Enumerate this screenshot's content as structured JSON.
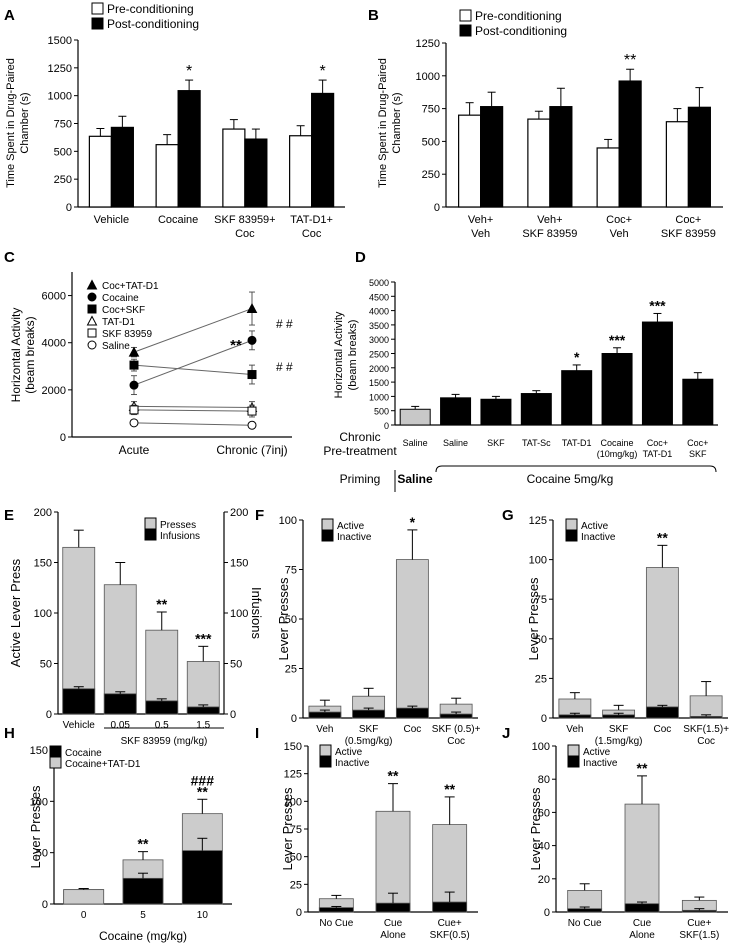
{
  "chart_data": [
    {
      "panel": "A",
      "type": "bar",
      "ylabel": "Time Spent in Drug-Paired Chamber (s)",
      "ylim": [
        0,
        1500
      ],
      "yticks": [
        0,
        250,
        500,
        750,
        1000,
        1250,
        1500
      ],
      "ytick_labels": [
        "0",
        "250",
        "500",
        "750",
        "1000",
        "1250",
        "1500"
      ],
      "categories": [
        [
          "Vehicle"
        ],
        [
          "Cocaine"
        ],
        [
          "SKF 83959+",
          "Coc"
        ],
        [
          "TAT-D1+",
          "Coc"
        ]
      ],
      "series": [
        {
          "name": "Pre-conditioning",
          "color": "#ffffff",
          "values": [
            635,
            560,
            700,
            640
          ],
          "errors": [
            70,
            90,
            85,
            90
          ]
        },
        {
          "name": "Post-conditioning",
          "color": "#000000",
          "values": [
            715,
            1045,
            610,
            1020
          ],
          "errors": [
            100,
            95,
            90,
            120
          ]
        }
      ],
      "annotations": [
        {
          "category": 1,
          "series": 1,
          "text": "*"
        },
        {
          "category": 3,
          "series": 1,
          "text": "*"
        }
      ]
    },
    {
      "panel": "B",
      "type": "bar",
      "ylabel": "Time Spent in Drug-Paired Chamber (s)",
      "ylim": [
        0,
        1250
      ],
      "yticks": [
        0,
        250,
        500,
        750,
        1000,
        1250
      ],
      "ytick_labels": [
        "0",
        "250",
        "500",
        "750",
        "1000",
        "1250"
      ],
      "categories": [
        [
          "Veh+",
          "Veh"
        ],
        [
          "Veh+",
          "SKF 83959"
        ],
        [
          "Coc+",
          "Veh"
        ],
        [
          "Coc+",
          "SKF 83959"
        ]
      ],
      "series": [
        {
          "name": "Pre-conditioning",
          "color": "#ffffff",
          "values": [
            700,
            670,
            450,
            650
          ],
          "errors": [
            95,
            60,
            65,
            100
          ]
        },
        {
          "name": "Post-conditioning",
          "color": "#000000",
          "values": [
            765,
            765,
            960,
            760
          ],
          "errors": [
            110,
            140,
            90,
            150
          ]
        }
      ],
      "annotations": [
        {
          "category": 2,
          "series": 1,
          "text": "**"
        }
      ]
    },
    {
      "panel": "C",
      "type": "line",
      "ylabel": "Horizontal Activity (beam breaks)",
      "ylim": [
        0,
        7000
      ],
      "yticks": [
        0,
        2000,
        4000,
        6000
      ],
      "ytick_labels": [
        "0",
        "2000",
        "4000",
        "6000"
      ],
      "x": [
        "Acute",
        "Chronic (7inj)"
      ],
      "series": [
        {
          "name": "Coc+TAT-D1",
          "marker": "tri-fill",
          "values": [
            3600,
            5450
          ],
          "errors": [
            200,
            700
          ]
        },
        {
          "name": "Cocaine",
          "marker": "circle-fill",
          "values": [
            2200,
            4100
          ],
          "errors": [
            400,
            400
          ]
        },
        {
          "name": "Coc+SKF",
          "marker": "square-fill",
          "values": [
            3050,
            2650
          ],
          "errors": [
            250,
            400
          ]
        },
        {
          "name": "TAT-D1",
          "marker": "tri-open",
          "values": [
            1300,
            1250
          ],
          "errors": [
            200,
            250
          ]
        },
        {
          "name": "SKF 83959",
          "marker": "square-open",
          "values": [
            1150,
            1100
          ],
          "errors": [
            200,
            250
          ]
        },
        {
          "name": "Saline",
          "marker": "circle-open",
          "values": [
            600,
            500
          ],
          "errors": [
            80,
            80
          ]
        }
      ],
      "annotations": [
        {
          "text": "**"
        },
        {
          "text": "# #"
        },
        {
          "text": "# #"
        }
      ]
    },
    {
      "panel": "D",
      "type": "bar",
      "ylabel": "Horizontal Activity (beam breaks)",
      "ylim": [
        0,
        5000
      ],
      "yticks": [
        0,
        500,
        1000,
        1500,
        2000,
        2500,
        3000,
        3500,
        4000,
        4500,
        5000
      ],
      "ytick_labels": [
        "0",
        "500",
        "1000",
        "1500",
        "2000",
        "2500",
        "3000",
        "3500",
        "4000",
        "4500",
        "5000"
      ],
      "categories": [
        [
          "Saline"
        ],
        [
          "Saline"
        ],
        [
          "SKF"
        ],
        [
          "TAT-Sc"
        ],
        [
          "TAT-D1"
        ],
        [
          "Cocaine",
          "(10mg/kg)"
        ],
        [
          "Coc+",
          "TAT-D1"
        ],
        [
          "Coc+",
          "SKF"
        ]
      ],
      "values": [
        550,
        950,
        900,
        1100,
        1900,
        2500,
        3600,
        1600
      ],
      "errors": [
        100,
        120,
        100,
        100,
        200,
        200,
        300,
        230
      ],
      "colors": [
        "#c8c8c8",
        "#000000",
        "#000000",
        "#000000",
        "#000000",
        "#000000",
        "#000000",
        "#000000"
      ],
      "annotations": [
        {
          "category": 4,
          "text": "*"
        },
        {
          "category": 5,
          "text": "***"
        },
        {
          "category": 6,
          "text": "***"
        }
      ],
      "row_labels": [
        "Chronic",
        "Pre-treatment",
        "Priming"
      ],
      "priming": [
        "Saline",
        "Cocaine 5mg/kg"
      ]
    },
    {
      "panel": "E",
      "type": "bar",
      "ylabel": "Active Lever Press",
      "y2label": "Infusions",
      "ylim": [
        0,
        200
      ],
      "yticks": [
        0,
        50,
        100,
        150,
        200
      ],
      "ytick_labels": [
        "0",
        "50",
        "100",
        "150",
        "200"
      ],
      "y2ticks": [
        "0",
        "50",
        "100",
        "150",
        "200"
      ],
      "categories": [
        [
          "Vehicle"
        ],
        [
          "0.05"
        ],
        [
          "0.5"
        ],
        [
          "1.5"
        ]
      ],
      "xlabel": "SKF 83959 (mg/kg)",
      "series": [
        {
          "name": "Presses",
          "color": "#cccccc",
          "values": [
            165,
            128,
            83,
            52
          ],
          "errors": [
            17,
            22,
            18,
            15
          ]
        },
        {
          "name": "Infusions",
          "color": "#000000",
          "values": [
            25,
            20,
            13,
            7
          ],
          "errors": [
            2,
            2,
            2,
            2
          ]
        }
      ],
      "annotations": [
        {
          "category": 2,
          "text": "**"
        },
        {
          "category": 3,
          "text": "***"
        }
      ]
    },
    {
      "panel": "F",
      "type": "bar",
      "ylabel": "Lever Presses",
      "ylim": [
        0,
        100
      ],
      "yticks": [
        0,
        25,
        50,
        75,
        100
      ],
      "ytick_labels": [
        "0",
        "25",
        "50",
        "75",
        "100"
      ],
      "categories": [
        [
          "Veh"
        ],
        [
          "SKF",
          "(0.5mg/kg)"
        ],
        [
          "Coc"
        ],
        [
          "SKF (0.5)+",
          "Coc"
        ]
      ],
      "series": [
        {
          "name": "Active",
          "color": "#cccccc",
          "values": [
            6,
            11,
            80,
            7
          ],
          "errors": [
            3,
            4,
            15,
            3
          ]
        },
        {
          "name": "Inactive",
          "color": "#000000",
          "values": [
            3,
            4,
            5,
            2
          ],
          "errors": [
            1,
            1,
            1,
            1
          ]
        }
      ],
      "annotations": [
        {
          "category": 2,
          "text": "*"
        }
      ]
    },
    {
      "panel": "G",
      "type": "bar",
      "ylabel": "Lever Presses",
      "ylim": [
        0,
        125
      ],
      "yticks": [
        0,
        25,
        50,
        75,
        100,
        125
      ],
      "ytick_labels": [
        "0",
        "25",
        "50",
        "75",
        "100",
        "125"
      ],
      "categories": [
        [
          "Veh"
        ],
        [
          "SKF",
          "(1.5mg/kg)"
        ],
        [
          "Coc"
        ],
        [
          "SKF(1.5)+",
          "Coc"
        ]
      ],
      "series": [
        {
          "name": "Active",
          "color": "#cccccc",
          "values": [
            12,
            5,
            95,
            14
          ],
          "errors": [
            4,
            3,
            14,
            9
          ]
        },
        {
          "name": "Inactive",
          "color": "#000000",
          "values": [
            2,
            2,
            7,
            1
          ],
          "errors": [
            1,
            1,
            1,
            1
          ]
        }
      ],
      "annotations": [
        {
          "category": 2,
          "text": "**"
        }
      ]
    },
    {
      "panel": "H",
      "type": "bar",
      "ylabel": "Lever Presses",
      "ylim": [
        0,
        150
      ],
      "yticks": [
        0,
        50,
        100,
        150
      ],
      "ytick_labels": [
        "0",
        "50",
        "100",
        "150"
      ],
      "categories": [
        [
          "0"
        ],
        [
          "5"
        ],
        [
          "10"
        ]
      ],
      "xlabel": "Cocaine (mg/kg)",
      "series": [
        {
          "name": "Cocaine",
          "color": "#000000",
          "values": [
            14,
            25,
            52
          ],
          "errors": [
            1,
            5,
            12
          ]
        },
        {
          "name": "Cocaine+TAT-D1",
          "color": "#cccccc",
          "values": [
            14,
            43,
            88
          ],
          "errors": [
            1,
            8,
            14
          ]
        }
      ],
      "annotations": [
        {
          "category": 1,
          "text": "**"
        },
        {
          "category": 2,
          "text": "**"
        },
        {
          "category": 2,
          "text": "###"
        }
      ]
    },
    {
      "panel": "I",
      "type": "bar",
      "ylabel": "Lever Presses",
      "ylim": [
        0,
        150
      ],
      "yticks": [
        0,
        25,
        50,
        75,
        100,
        125,
        150
      ],
      "ytick_labels": [
        "0",
        "25",
        "50",
        "75",
        "100",
        "125",
        "150"
      ],
      "categories": [
        [
          "No Cue"
        ],
        [
          "Cue",
          "Alone"
        ],
        [
          "Cue+",
          "SKF(0.5)"
        ]
      ],
      "series": [
        {
          "name": "Active",
          "color": "#cccccc",
          "values": [
            12,
            91,
            79
          ],
          "errors": [
            3,
            25,
            25
          ]
        },
        {
          "name": "Inactive",
          "color": "#000000",
          "values": [
            4,
            8,
            9
          ],
          "errors": [
            1,
            9,
            9
          ]
        }
      ],
      "annotations": [
        {
          "category": 1,
          "text": "**"
        },
        {
          "category": 2,
          "text": "**"
        }
      ]
    },
    {
      "panel": "J",
      "type": "bar",
      "ylabel": "Lever Presses",
      "ylim": [
        0,
        100
      ],
      "yticks": [
        0,
        20,
        40,
        60,
        80,
        100
      ],
      "ytick_labels": [
        "0",
        "20",
        "40",
        "60",
        "80",
        "100"
      ],
      "categories": [
        [
          "No Cue"
        ],
        [
          "Cue",
          "Alone"
        ],
        [
          "Cue+",
          "SKF(1.5)"
        ]
      ],
      "series": [
        {
          "name": "Active",
          "color": "#cccccc",
          "values": [
            13,
            65,
            7
          ],
          "errors": [
            4,
            17,
            2
          ]
        },
        {
          "name": "Inactive",
          "color": "#000000",
          "values": [
            2,
            5,
            1
          ],
          "errors": [
            1,
            1,
            1
          ]
        }
      ],
      "annotations": [
        {
          "category": 1,
          "text": "**"
        }
      ]
    }
  ]
}
